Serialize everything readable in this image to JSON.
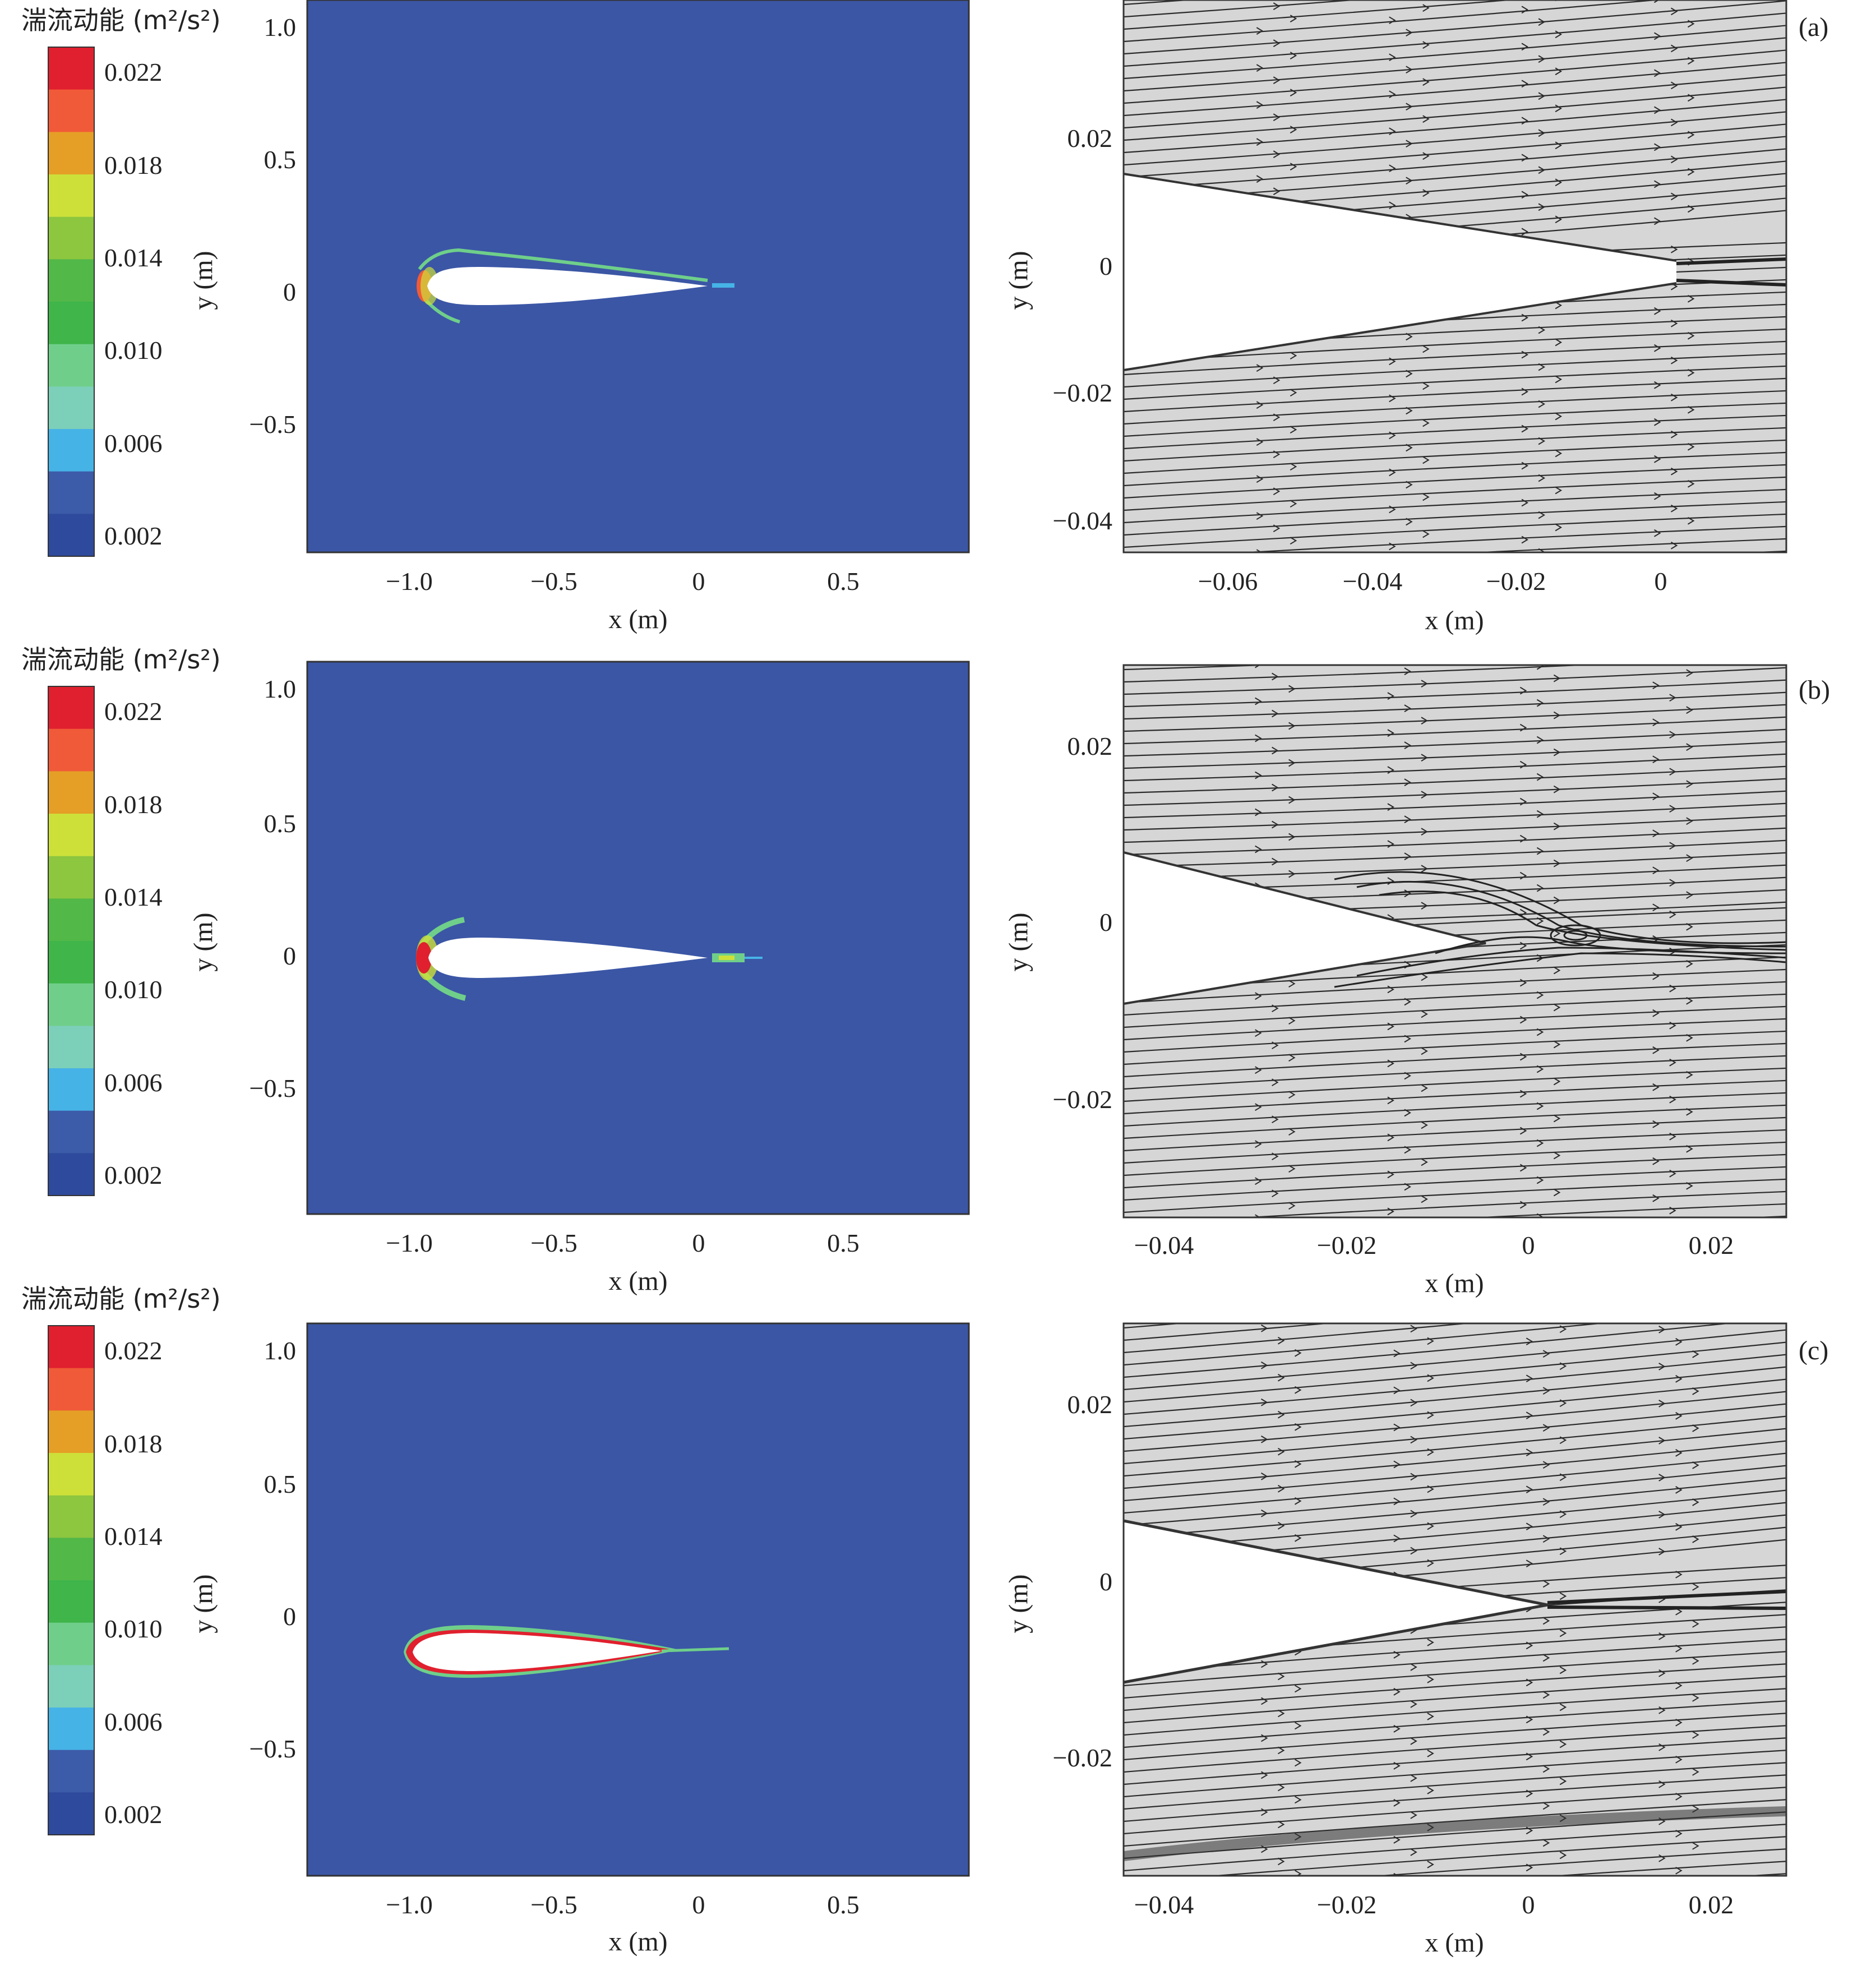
{
  "figure": {
    "colorbar_title": "湍流动能 (m²/s²)",
    "colorbar_ticks": [
      "0.022",
      "0.018",
      "0.014",
      "0.010",
      "0.006",
      "0.002"
    ],
    "colorbar_colors": [
      "#e0202e",
      "#f15a38",
      "#e59e26",
      "#cde03a",
      "#8dc63f",
      "#52b848",
      "#3fb54a",
      "#6fcf8a",
      "#7ccfb8",
      "#46b3e6",
      "#3c5ba8",
      "#2e4a9c"
    ],
    "field_color": "#3b56a5",
    "streamline_bg": "#d6d6d6"
  },
  "chart_data": [
    {
      "type": "heatmap",
      "panel": "a-left",
      "xlabel": "x (m)",
      "ylabel": "y (m)",
      "xlim": [
        -1.4,
        0.95
      ],
      "ylim": [
        -0.98,
        1.1
      ],
      "xticks": [
        -1.0,
        -0.5,
        0,
        0.5
      ],
      "xtick_labels": [
        "−1.0",
        "−0.5",
        "0",
        "0.5"
      ],
      "yticks": [
        1.0,
        0.5,
        0,
        -0.5
      ],
      "ytick_labels": [
        "1.0",
        "0.5",
        "0",
        "−0.5"
      ],
      "airfoil": {
        "le_x": -0.97,
        "te_x": 0.04,
        "y": 0.03,
        "half_thickness": 0.07
      },
      "hotspots": [
        {
          "x": -0.96,
          "y": 0.03,
          "level": 0.018
        },
        {
          "x": 0.08,
          "y": 0.02,
          "level": 0.006
        }
      ]
    },
    {
      "type": "streamline",
      "panel": "a-right",
      "label": "(a)",
      "xlabel": "x (m)",
      "ylabel": "y (m)",
      "xlim": [
        -0.075,
        0.017
      ],
      "ylim": [
        -0.045,
        0.042
      ],
      "xticks": [
        -0.06,
        -0.04,
        -0.02,
        0
      ],
      "xtick_labels": [
        "−0.06",
        "−0.04",
        "−0.02",
        "0"
      ],
      "yticks": [
        0.02,
        0,
        -0.02,
        -0.04
      ],
      "ytick_labels": [
        "0.02",
        "0",
        "−0.02",
        "−0.04"
      ]
    },
    {
      "type": "heatmap",
      "panel": "b-left",
      "xlabel": "x (m)",
      "ylabel": "y (m)",
      "xlim": [
        -1.4,
        0.95
      ],
      "ylim": [
        -0.98,
        1.1
      ],
      "xticks": [
        -1.0,
        -0.5,
        0,
        0.5
      ],
      "xtick_labels": [
        "−1.0",
        "−0.5",
        "0",
        "0.5"
      ],
      "yticks": [
        1.0,
        0.5,
        0,
        -0.5
      ],
      "ytick_labels": [
        "1.0",
        "0.5",
        "0",
        "−0.5"
      ],
      "airfoil": {
        "le_x": -0.97,
        "te_x": 0.05,
        "y": -0.01,
        "half_thickness": 0.075
      },
      "hotspots": [
        {
          "x": -0.96,
          "y": -0.01,
          "level": 0.022
        },
        {
          "x": 0.1,
          "y": -0.01,
          "level": 0.01
        }
      ]
    },
    {
      "type": "streamline",
      "panel": "b-right",
      "label": "(b)",
      "xlabel": "x (m)",
      "ylabel": "y (m)",
      "xlim": [
        -0.044,
        0.028
      ],
      "ylim": [
        -0.033,
        0.029
      ],
      "xticks": [
        -0.04,
        -0.02,
        0,
        0.02
      ],
      "xtick_labels": [
        "−0.04",
        "−0.02",
        "0",
        "0.02"
      ],
      "yticks": [
        0.02,
        0,
        -0.02
      ],
      "ytick_labels": [
        "0.02",
        "0",
        "−0.02"
      ]
    },
    {
      "type": "heatmap",
      "panel": "c-left",
      "xlabel": "x (m)",
      "ylabel": "y (m)",
      "xlim": [
        -1.4,
        0.95
      ],
      "ylim": [
        -0.98,
        1.1
      ],
      "xticks": [
        -1.0,
        -0.5,
        0,
        0.5
      ],
      "xtick_labels": [
        "−1.0",
        "−0.5",
        "0",
        "0.5"
      ],
      "yticks": [
        1.0,
        0.5,
        0,
        -0.5
      ],
      "ytick_labels": [
        "1.0",
        "0.5",
        "0",
        "−0.5"
      ],
      "airfoil": {
        "le_x": -1.0,
        "te_x": -0.12,
        "y": -0.14,
        "half_thickness": 0.07
      },
      "hotspots": [
        {
          "x": -0.99,
          "y": -0.14,
          "level": 0.022
        }
      ]
    },
    {
      "type": "streamline",
      "panel": "c-right",
      "label": "(c)",
      "xlabel": "x (m)",
      "ylabel": "y (m)",
      "xlim": [
        -0.044,
        0.028
      ],
      "ylim": [
        -0.033,
        0.029
      ],
      "xticks": [
        -0.04,
        -0.02,
        0,
        0.02
      ],
      "xtick_labels": [
        "−0.04",
        "−0.02",
        "0",
        "0.02"
      ],
      "yticks": [
        0.02,
        0,
        -0.02
      ],
      "ytick_labels": [
        "0.02",
        "0",
        "−0.02"
      ]
    }
  ]
}
